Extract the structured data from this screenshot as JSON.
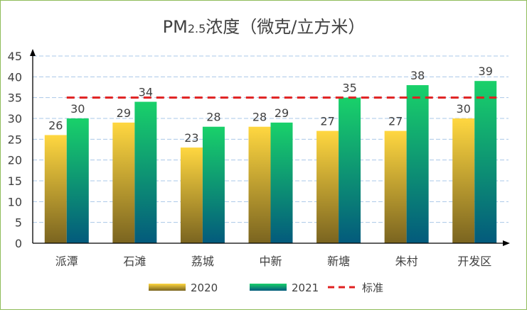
{
  "chart_data": {
    "type": "bar",
    "title_main": "PM",
    "title_sub": "2.5",
    "title_rest": "浓度（微克/立方米）",
    "categories": [
      "派潭",
      "石滩",
      "荔城",
      "中新",
      "新塘",
      "朱村",
      "开发区"
    ],
    "series": [
      {
        "name": "2020",
        "values": [
          26,
          29,
          23,
          28,
          27,
          27,
          30
        ]
      },
      {
        "name": "2021",
        "values": [
          30,
          34,
          28,
          29,
          35,
          38,
          39
        ]
      }
    ],
    "reference_line": {
      "name": "标准",
      "value": 35
    },
    "ylim": [
      0,
      45
    ],
    "yticks": [
      "0",
      "5",
      "10",
      "15",
      "20",
      "25",
      "30",
      "35",
      "40",
      "45"
    ],
    "grid": true,
    "legend_position": "bottom",
    "colors": {
      "s2020_top": "#ffd740",
      "s2020_bottom": "#7a6420",
      "s2021_top": "#19d16a",
      "s2021_bottom": "#035a7c",
      "reference": "#e02020",
      "grid": "#a9c8e8",
      "axis": "#000000",
      "frame": "#8fbc5a"
    }
  }
}
